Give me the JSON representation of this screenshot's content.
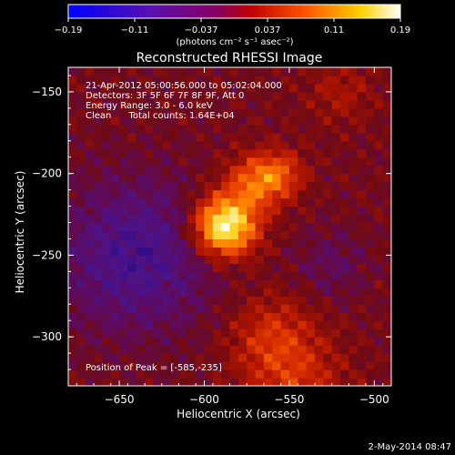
{
  "colorbar": {
    "ticks": [
      "-0.19",
      "-0.11",
      "-0.037",
      "0.037",
      "0.11",
      "0.19"
    ],
    "label": "(photons cm⁻² s⁻¹ asec⁻²)",
    "range": [
      -0.19,
      0.19
    ]
  },
  "overlay": {
    "line1": "21-Apr-2012 05:00:56.000 to 05:02:04.000",
    "line2": "Detectors: 3F 5F 6F 7F 8F 9F, Att 0",
    "line3": "Energy Range: 3.0 - 6.0 keV",
    "line4": "Clean      Total counts: 1.64E+04",
    "peak": "Position of Peak = [-585,-235]"
  },
  "footer": {
    "date": "2-May-2014 08:47"
  },
  "colors": {
    "background": "#000000",
    "text": "#ffffff"
  },
  "chart_data": {
    "type": "heatmap",
    "title": "Reconstructed RHESSI Image",
    "xlabel": "Heliocentric X (arcsec)",
    "ylabel": "Heliocentric Y (arcsec)",
    "xlim": [
      -680,
      -490
    ],
    "ylim": [
      -330,
      -135
    ],
    "x_ticks": [
      -650,
      -600,
      -550,
      -500
    ],
    "x_tick_labels": [
      "−650",
      "−600",
      "−550",
      "−500"
    ],
    "y_ticks": [
      -150,
      -200,
      -250,
      -300
    ],
    "y_tick_labels": [
      "−150",
      "−200",
      "−250",
      "−300"
    ],
    "colormap": "hot (black-blue-purple-red-orange-yellow-white)",
    "peak_position": [
      -585,
      -235
    ],
    "peak_value": 0.19
  }
}
